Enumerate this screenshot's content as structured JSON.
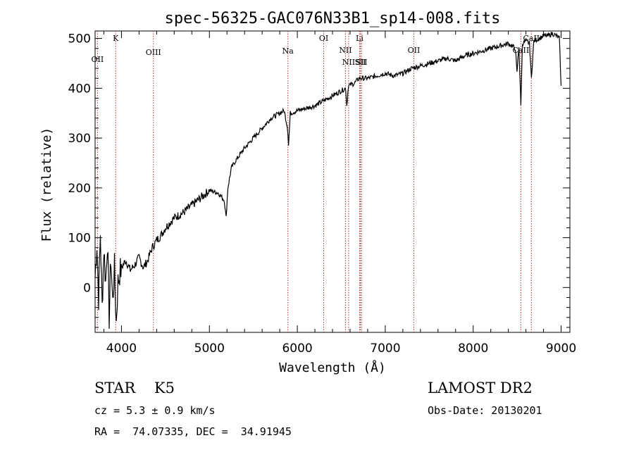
{
  "chart_data": {
    "type": "line",
    "title": "spec-56325-GAC076N33B1_sp14-008.fits",
    "xlabel": "Wavelength (Å)",
    "ylabel": "Flux (relative)",
    "xlim": [
      3700,
      9100
    ],
    "ylim": [
      -90,
      515
    ],
    "xticks": [
      "4000",
      "5000",
      "6000",
      "7000",
      "8000",
      "9000"
    ],
    "yticks": [
      "0",
      "100",
      "200",
      "300",
      "400",
      "500"
    ],
    "series": [
      {
        "name": "flux",
        "x": [
          3700,
          3720,
          3740,
          3760,
          3780,
          3800,
          3820,
          3840,
          3860,
          3880,
          3900,
          3920,
          3940,
          3960,
          3980,
          4000,
          4050,
          4100,
          4150,
          4200,
          4250,
          4300,
          4350,
          4400,
          4450,
          4500,
          4600,
          4700,
          4800,
          4900,
          5000,
          5100,
          5170,
          5190,
          5210,
          5250,
          5300,
          5400,
          5500,
          5600,
          5700,
          5800,
          5850,
          5890,
          5900,
          5920,
          6000,
          6100,
          6200,
          6300,
          6400,
          6500,
          6550,
          6563,
          6580,
          6650,
          6700,
          6800,
          6900,
          7000,
          7100,
          7200,
          7300,
          7400,
          7500,
          7600,
          7700,
          7800,
          7900,
          8000,
          8100,
          8200,
          8300,
          8400,
          8480,
          8498,
          8520,
          8542,
          8560,
          8600,
          8640,
          8662,
          8690,
          8750,
          8800,
          8850,
          8900,
          8950,
          8980,
          9000
        ],
        "values": [
          20,
          90,
          -20,
          110,
          -40,
          80,
          10,
          95,
          -60,
          60,
          -30,
          40,
          -70,
          10,
          30,
          40,
          55,
          35,
          45,
          60,
          40,
          55,
          80,
          95,
          105,
          120,
          140,
          150,
          165,
          180,
          195,
          190,
          175,
          140,
          200,
          240,
          255,
          280,
          300,
          320,
          340,
          350,
          355,
          320,
          285,
          350,
          355,
          360,
          365,
          375,
          385,
          395,
          400,
          365,
          405,
          410,
          420,
          420,
          425,
          430,
          425,
          430,
          440,
          445,
          450,
          455,
          460,
          455,
          465,
          470,
          475,
          480,
          485,
          490,
          480,
          430,
          485,
          365,
          490,
          495,
          490,
          420,
          495,
          500,
          505,
          505,
          510,
          505,
          500,
          405
        ]
      }
    ],
    "lines": [
      {
        "name": "OII",
        "wave": 3727
      },
      {
        "name": "K",
        "wave": 3934
      },
      {
        "name": "OIII",
        "wave": 4363
      },
      {
        "name": "Na",
        "wave": 5893
      },
      {
        "name": "OI",
        "wave": 6300
      },
      {
        "name": "NII",
        "wave": 6548
      },
      {
        "name": "NII",
        "wave": 6584
      },
      {
        "name": "Li",
        "wave": 6708
      },
      {
        "name": "SII",
        "wave": 6717
      },
      {
        "name": "SII",
        "wave": 6731
      },
      {
        "name": "OII",
        "wave": 7325
      },
      {
        "name": "CaII",
        "wave": 8542
      },
      {
        "name": "CaII",
        "wave": 8662
      }
    ]
  },
  "info": {
    "classification": "STAR    K5",
    "survey": "LAMOST DR2",
    "redshift": "cz = 5.3 ± 0.9 km/s",
    "obs_date": "Obs-Date: 20130201",
    "coords": "RA =  74.07335, DEC =  34.91945"
  }
}
